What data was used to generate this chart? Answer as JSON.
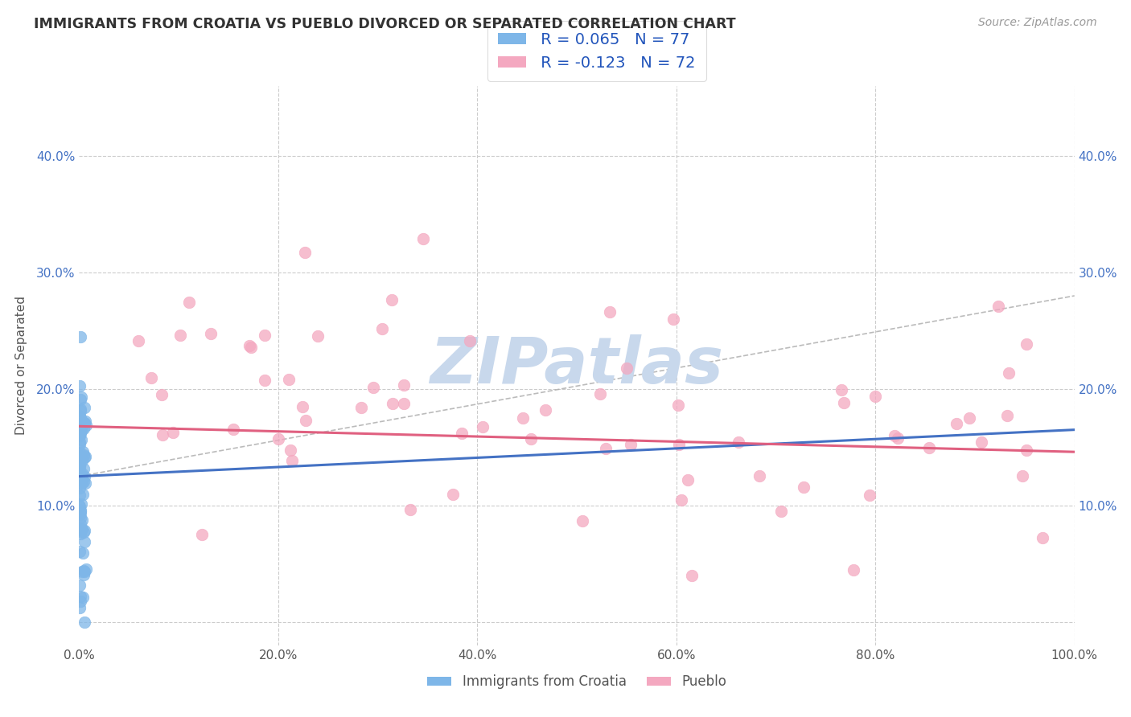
{
  "title": "IMMIGRANTS FROM CROATIA VS PUEBLO DIVORCED OR SEPARATED CORRELATION CHART",
  "source_text": "Source: ZipAtlas.com",
  "ylabel": "Divorced or Separated",
  "R1": 0.065,
  "N1": 77,
  "R2": -0.123,
  "N2": 72,
  "legend_series1_label": "Immigrants from Croatia",
  "legend_series2_label": "Pueblo",
  "color1": "#7EB6E8",
  "color2": "#F4A8C0",
  "trendline1_color": "#4472C4",
  "trendline2_color": "#E06080",
  "trendline1_dashed_color": "#AABBDD",
  "watermark_color": "#C8D8EC",
  "background_color": "#FFFFFF",
  "grid_color": "#CCCCCC",
  "title_color": "#333333",
  "marker_size": 110,
  "marker_alpha": 0.75
}
